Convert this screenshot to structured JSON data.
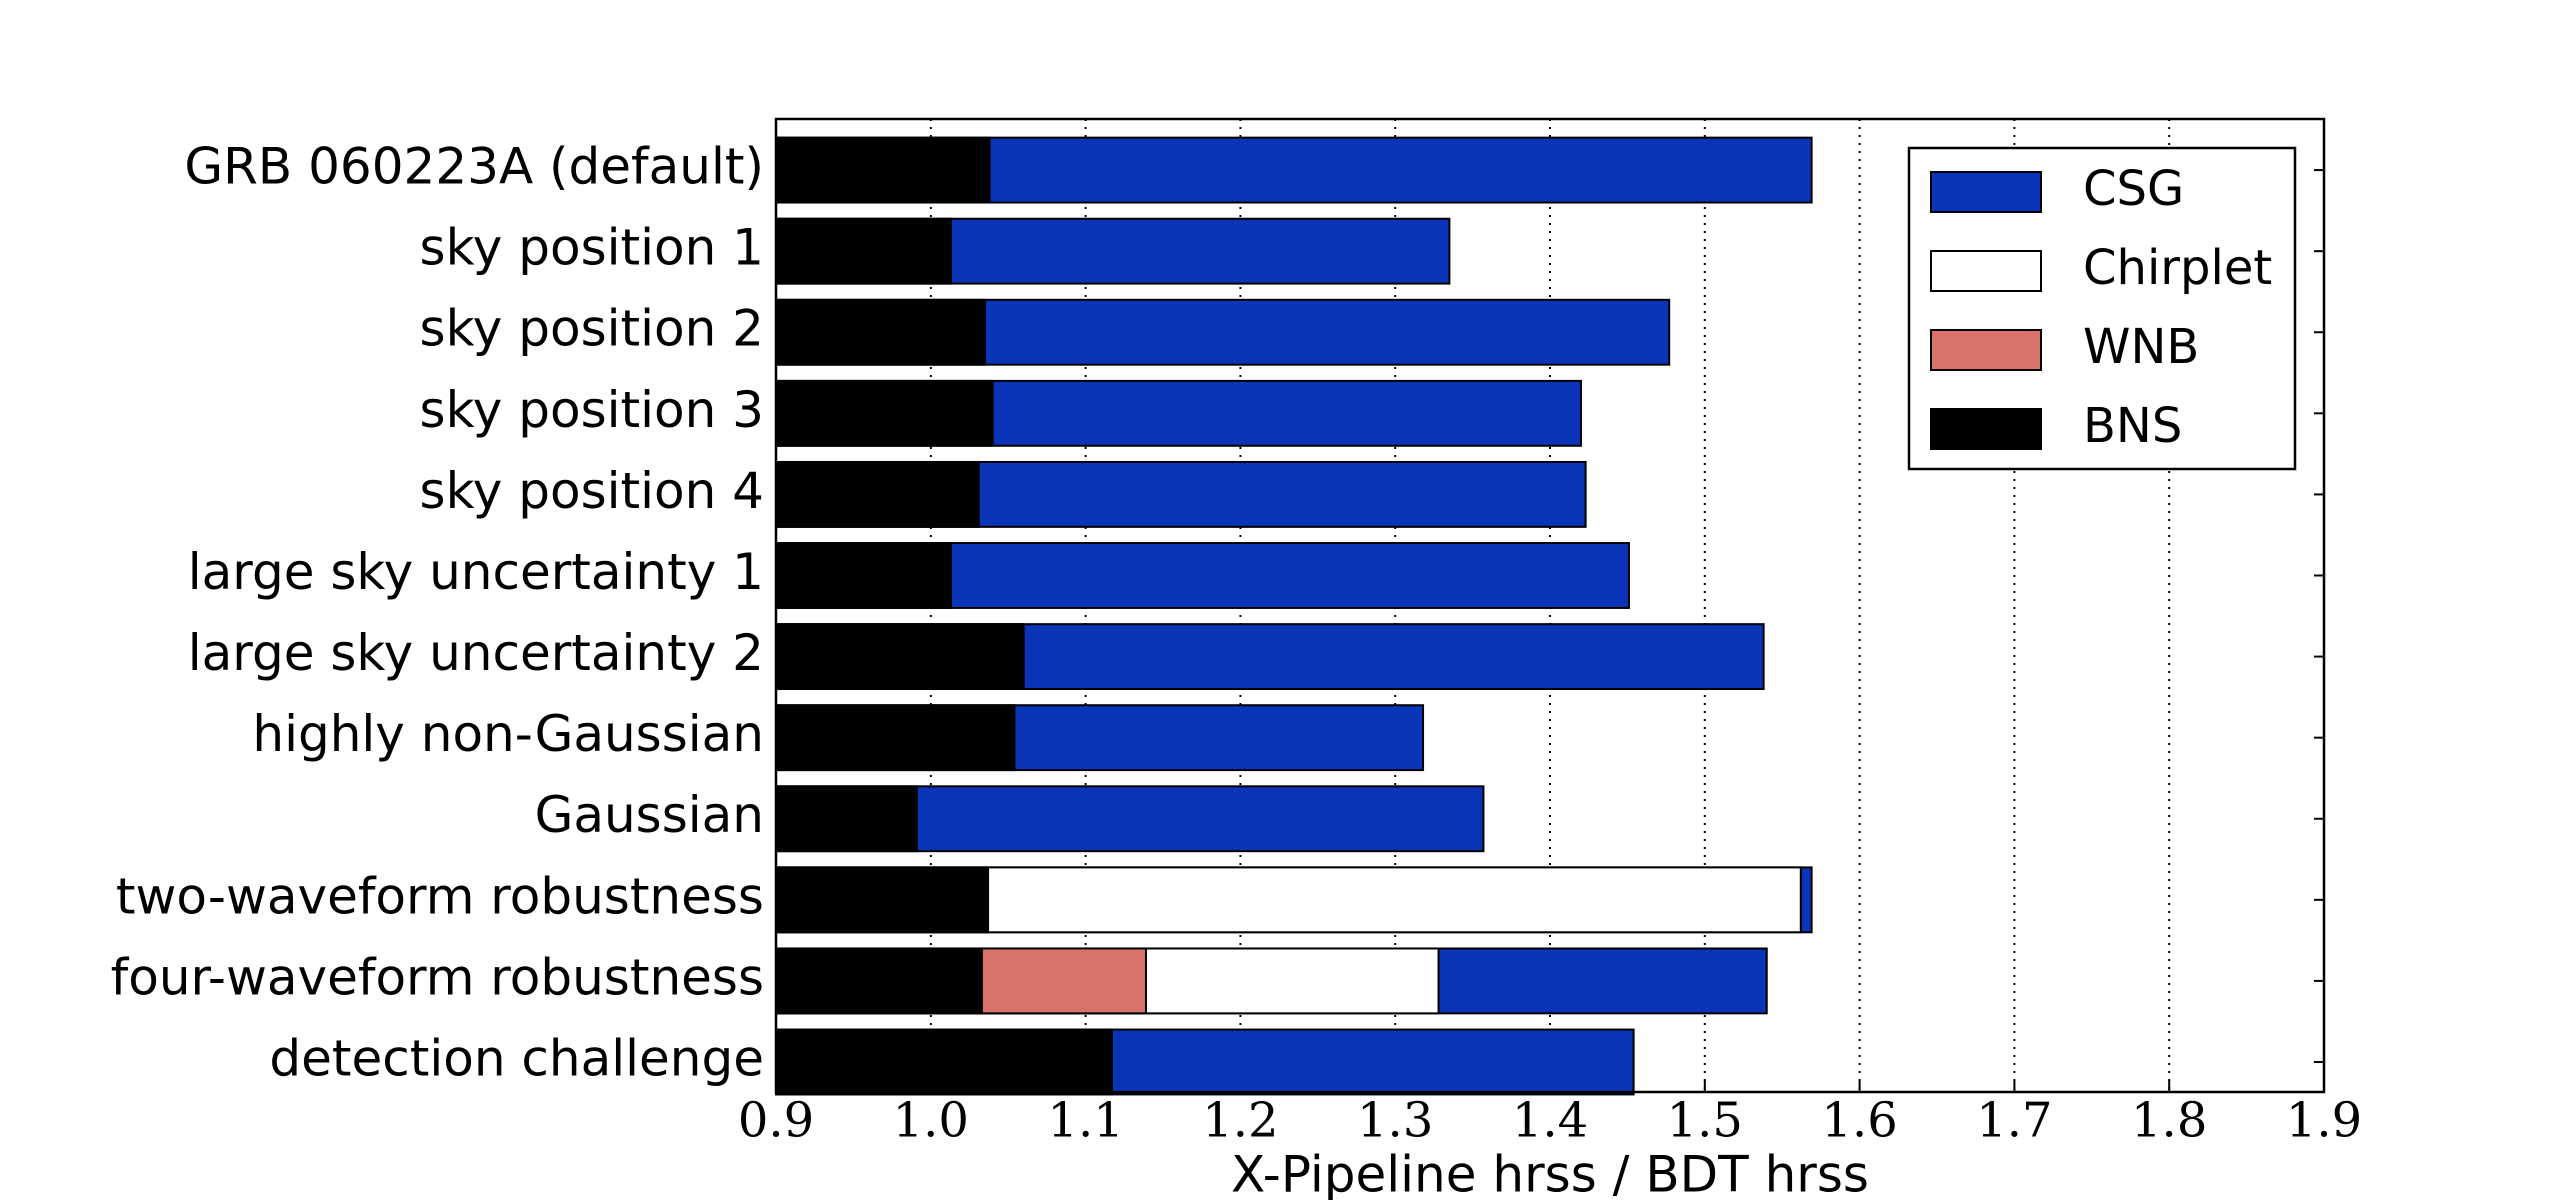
{
  "chart_data": {
    "type": "overlapping-bar",
    "orientation": "horizontal",
    "xlabel": "X-Pipeline hrss / BDT hrss",
    "categories": [
      "GRB 060223A (default)",
      "sky position 1",
      "sky position 2",
      "sky position 3",
      "sky position 4",
      "large sky uncertainty 1",
      "large sky uncertainty 2",
      "highly non-Gaussian",
      "Gaussian",
      "two-waveform robustness",
      "four-waveform robustness",
      "detection challenge"
    ],
    "series": [
      {
        "name": "CSG",
        "color": "#0a35b8",
        "values": [
          1.569,
          1.335,
          1.477,
          1.42,
          1.423,
          1.451,
          1.538,
          1.318,
          1.357,
          1.569,
          1.54,
          1.454
        ]
      },
      {
        "name": "Chirplet",
        "color": "#ffffff",
        "values": [
          null,
          null,
          null,
          null,
          null,
          null,
          null,
          null,
          null,
          1.562,
          1.328,
          null
        ]
      },
      {
        "name": "WNB",
        "color": "#d9736a",
        "values": [
          null,
          null,
          null,
          null,
          null,
          null,
          null,
          null,
          null,
          null,
          1.139,
          null
        ]
      },
      {
        "name": "BNS",
        "color": "#000000",
        "values": [
          1.038,
          1.013,
          1.035,
          1.04,
          1.031,
          1.013,
          1.06,
          1.054,
          0.991,
          1.037,
          1.033,
          1.117
        ]
      }
    ],
    "xlim": [
      0.9,
      1.9
    ],
    "xticks": [
      0.9,
      {
        "value": 1,
        "label": "1.0"
      },
      1.1,
      1.2,
      1.3,
      1.4,
      1.5,
      1.6,
      1.7,
      1.8,
      1.9
    ],
    "grid": true,
    "legend": "upper right"
  }
}
